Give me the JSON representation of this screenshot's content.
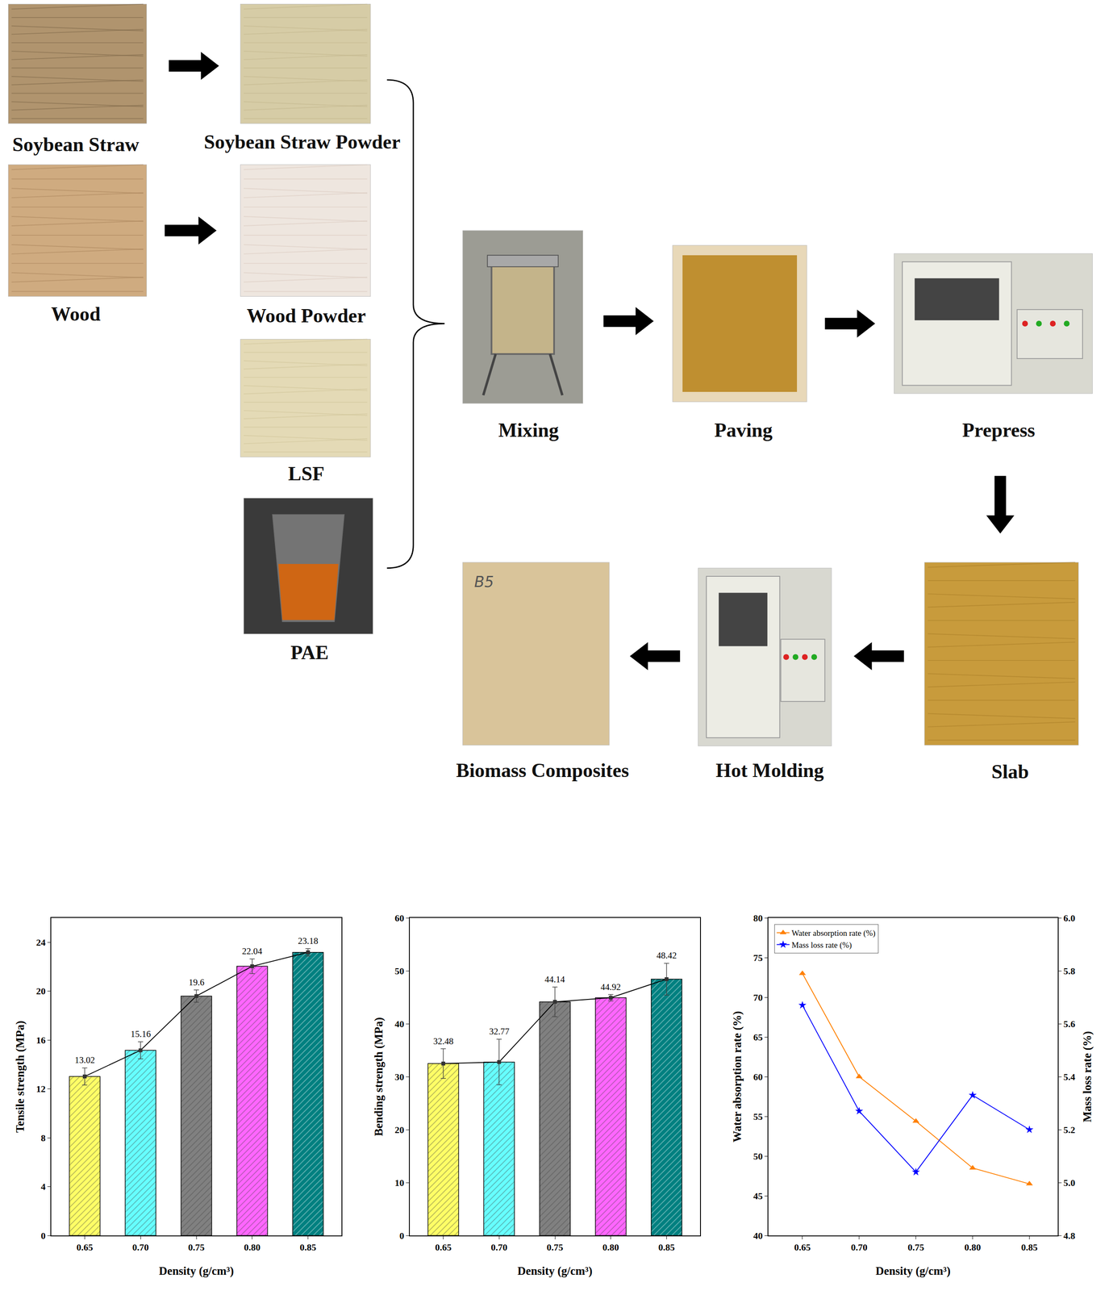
{
  "diagram": {
    "nodes": [
      {
        "label": "Soybean Straw"
      },
      {
        "label": "Soybean Straw Powder"
      },
      {
        "label": "Wood"
      },
      {
        "label": "Wood Powder"
      },
      {
        "label": "LSF"
      },
      {
        "label": "PAE"
      },
      {
        "label": "Mixing"
      },
      {
        "label": "Paving"
      },
      {
        "label": "Prepress"
      },
      {
        "label": "Slab"
      },
      {
        "label": "Hot Molding"
      },
      {
        "label": "Biomass Composites",
        "mark": "B5"
      }
    ]
  },
  "chart_data": [
    {
      "type": "bar",
      "xlabel": "Density (g/cm³)",
      "ylabel": "Tensile strength (MPa)",
      "categories": [
        "0.65",
        "0.70",
        "0.75",
        "0.80",
        "0.85"
      ],
      "values": [
        13.02,
        15.16,
        19.6,
        22.04,
        23.18
      ],
      "errors": [
        0.7,
        0.7,
        0.5,
        0.6,
        0.3
      ],
      "colors": [
        "#ffff66",
        "#66ffff",
        "#808080",
        "#ff66ff",
        "#008080"
      ],
      "marker": "square",
      "data_labels": true,
      "grid": false,
      "ylim": [
        0,
        26
      ],
      "yticks": [
        0,
        4,
        8,
        12,
        16,
        20,
        24
      ]
    },
    {
      "type": "bar",
      "xlabel": "Density (g/cm³)",
      "ylabel": "Bending strength (MPa)",
      "categories": [
        "0.65",
        "0.70",
        "0.75",
        "0.80",
        "0.85"
      ],
      "values": [
        32.48,
        32.77,
        44.14,
        44.92,
        48.42
      ],
      "errors": [
        2.8,
        4.3,
        2.8,
        0.6,
        3.0
      ],
      "colors": [
        "#ffff66",
        "#66ffff",
        "#808080",
        "#ff66ff",
        "#008080"
      ],
      "marker": "square",
      "data_labels": true,
      "grid": false,
      "ylim": [
        0,
        60
      ],
      "yticks": [
        0,
        10,
        20,
        30,
        40,
        50,
        60
      ]
    },
    {
      "type": "line",
      "xlabel": "Density (g/cm³)",
      "ylabel": "Water absorption rate (%)",
      "y2label": "Mass loss rate (%)",
      "x": [
        0.65,
        0.7,
        0.75,
        0.8,
        0.85
      ],
      "xlim": [
        0.62,
        0.875
      ],
      "xticks": [
        0.65,
        {
          "value": 0.7,
          "label": "0.70"
        },
        0.75,
        {
          "value": 0.8,
          "label": "0.80"
        },
        0.85
      ],
      "ylim": [
        40,
        80
      ],
      "yticks": [
        40,
        45,
        50,
        55,
        60,
        65,
        70,
        75,
        80
      ],
      "y2lim": [
        4.8,
        6.0
      ],
      "y2ticks": [
        4.8,
        {
          "value": 5,
          "label": "5.0"
        },
        5.2,
        5.4,
        5.6,
        5.8,
        {
          "value": 6,
          "label": "6.0"
        }
      ],
      "legend": "upper left",
      "grid": false,
      "series": [
        {
          "name": "Water absorption rate (%)",
          "color": "#ff8000",
          "marker": "triangle-up",
          "values": [
            73.0,
            60.0,
            54.4,
            48.5,
            46.5
          ]
        },
        {
          "name": "Mass loss rate (%)",
          "color": "#0000ff",
          "marker": "star",
          "axis": "y2",
          "values": [
            5.67,
            5.27,
            5.04,
            5.33,
            5.2
          ]
        }
      ]
    }
  ]
}
